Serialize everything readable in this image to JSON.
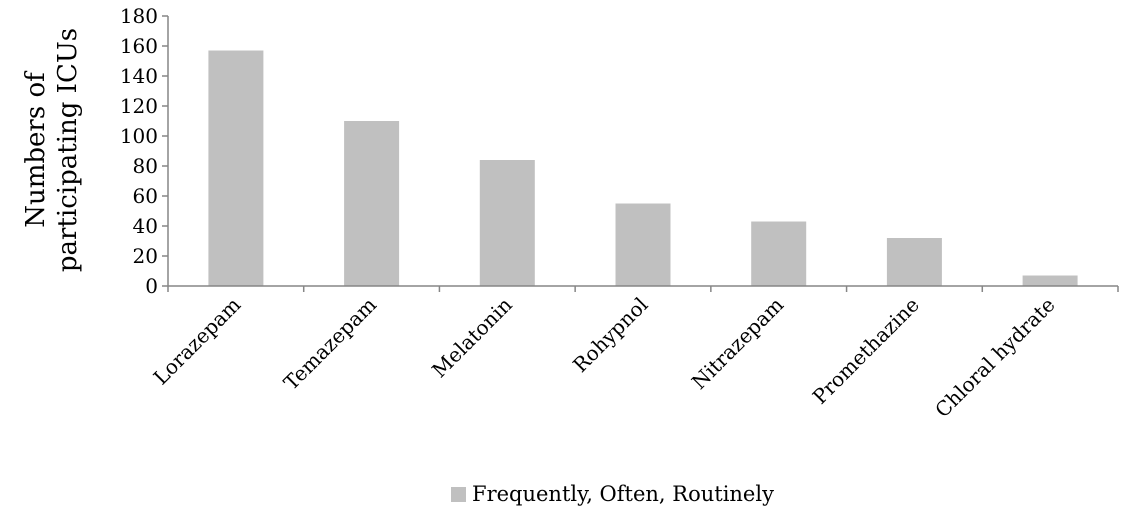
{
  "chart_data": {
    "type": "bar",
    "title": "",
    "xlabel": "",
    "ylabel": [
      "Numbers of",
      "participating ICUs"
    ],
    "categories": [
      "Lorazepam",
      "Temazepam",
      "Melatonin",
      "Rohypnol",
      "Nitrazepam",
      "Promethazine",
      "Chloral hydrate"
    ],
    "series": [
      {
        "name": "Frequently, Often, Routinely",
        "values": [
          157,
          110,
          84,
          55,
          43,
          32,
          7
        ],
        "color": "#c0c0c0"
      }
    ],
    "ylim": [
      0,
      180
    ],
    "yticks": [
      "0",
      "20",
      "40",
      "60",
      "80",
      "100",
      "120",
      "140",
      "160",
      "180"
    ],
    "grid": false,
    "legend_position": "bottom"
  }
}
